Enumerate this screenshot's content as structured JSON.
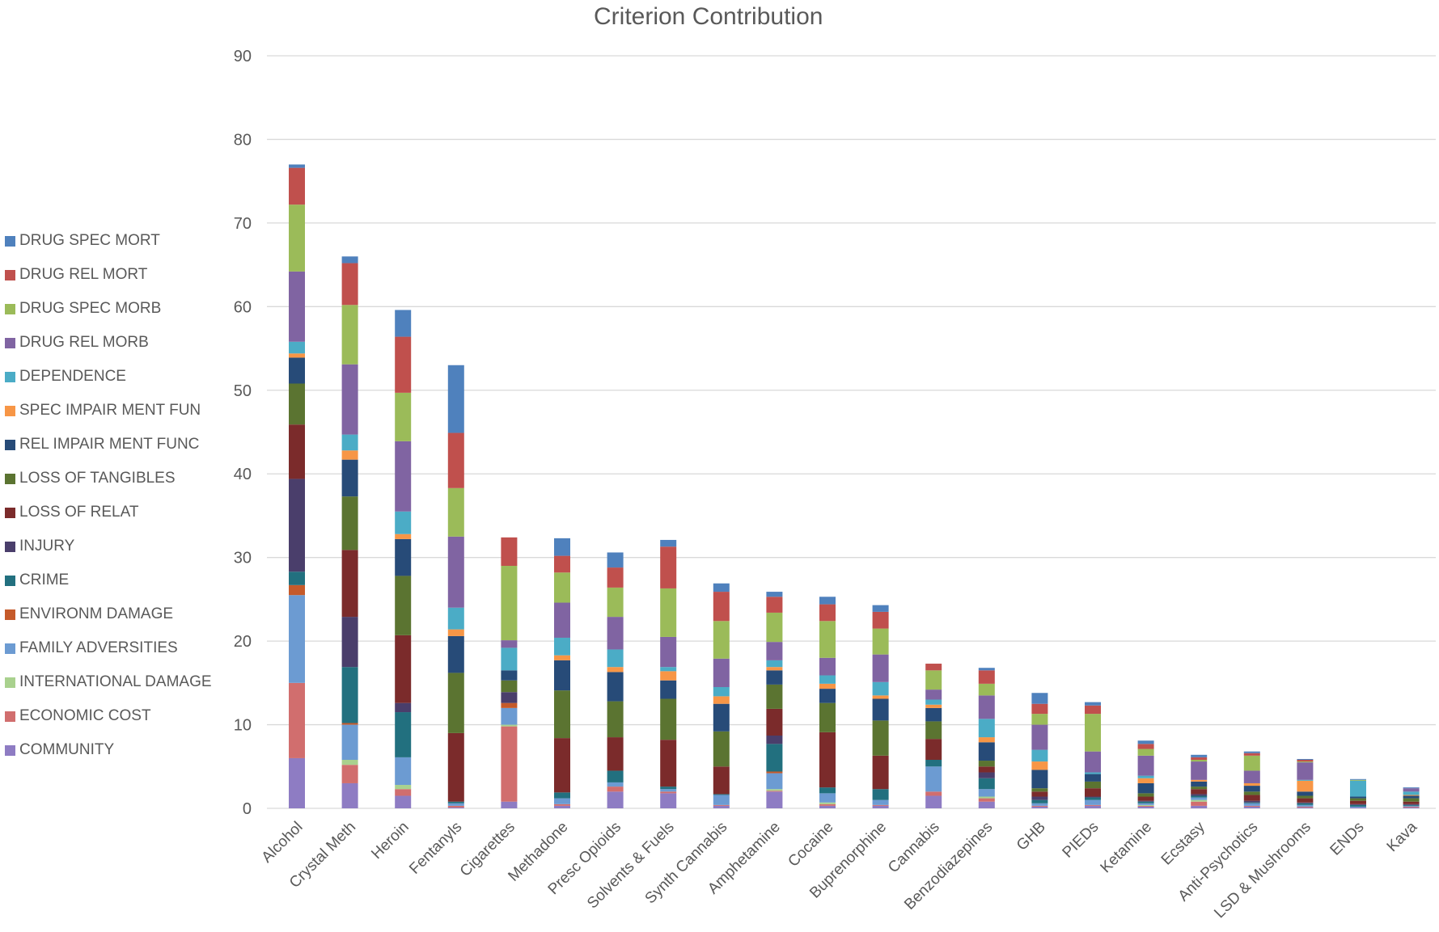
{
  "chart_data": {
    "type": "bar",
    "stacked": true,
    "title": "Criterion Contribution",
    "xlabel": "",
    "ylabel": "",
    "ylim": [
      0,
      90
    ],
    "yticks": [
      0,
      10,
      20,
      30,
      40,
      50,
      60,
      70,
      80,
      90
    ],
    "grid": true,
    "legend_position": "left",
    "categories": [
      "Alcohol",
      "Crystal Meth",
      "Heroin",
      "Fentanyls",
      "Cigarettes",
      "Methadone",
      "Presc Opioids",
      "Solvents & Fuels",
      "Synth Cannabis",
      "Amphetamine",
      "Cocaine",
      "Buprenorphine",
      "Cannabis",
      "Benzodiazepines",
      "GHB",
      "PIEDs",
      "Ketamine",
      "Ecstasy",
      "Anti-Psychotics",
      "LSD & Mushrooms",
      "ENDs",
      "Kava"
    ],
    "series": [
      {
        "name": "COMMUNITY",
        "color": "#8e7cc3",
        "values": [
          6.0,
          3.0,
          1.5,
          0.1,
          0.8,
          0.3,
          2.0,
          1.8,
          0.3,
          2.0,
          0.3,
          0.3,
          1.5,
          0.8,
          0.2,
          0.3,
          0.2,
          0.3,
          0.2,
          0.1,
          0.1,
          0.1
        ]
      },
      {
        "name": "ECONOMIC COST",
        "color": "#d16e6e",
        "values": [
          9.0,
          2.2,
          0.8,
          0.2,
          9.0,
          0.2,
          0.6,
          0.2,
          0.1,
          0.1,
          0.2,
          0.1,
          0.5,
          0.4,
          0.1,
          0.1,
          0.1,
          0.5,
          0.1,
          0.1,
          0.0,
          0.1
        ]
      },
      {
        "name": "INTERNATIONAL DAMAGE",
        "color": "#a9d18e",
        "values": [
          0.0,
          0.6,
          0.5,
          0.0,
          0.2,
          0.0,
          0.0,
          0.0,
          0.0,
          0.2,
          0.2,
          0.0,
          0.0,
          0.2,
          0.0,
          0.0,
          0.1,
          0.2,
          0.0,
          0.0,
          0.0,
          0.0
        ]
      },
      {
        "name": "FAMILY ADVERSITIES",
        "color": "#6c9bd2",
        "values": [
          10.5,
          4.2,
          3.3,
          0.3,
          2.0,
          0.7,
          0.5,
          0.3,
          1.2,
          1.9,
          1.1,
          0.6,
          3.0,
          0.9,
          0.3,
          0.6,
          0.2,
          0.3,
          0.3,
          0.2,
          0.1,
          0.1
        ]
      },
      {
        "name": "ENVIRONM DAMAGE",
        "color": "#c55a2a",
        "values": [
          1.2,
          0.2,
          0.0,
          0.0,
          0.6,
          0.0,
          0.0,
          0.0,
          0.0,
          0.2,
          0.0,
          0.0,
          0.0,
          0.0,
          0.0,
          0.0,
          0.0,
          0.0,
          0.0,
          0.0,
          0.0,
          0.0
        ]
      },
      {
        "name": "CRIME",
        "color": "#22707f",
        "values": [
          1.6,
          6.7,
          5.4,
          0.2,
          0.0,
          0.7,
          1.4,
          0.3,
          0.1,
          3.3,
          0.7,
          1.3,
          0.8,
          1.3,
          0.4,
          0.3,
          0.2,
          0.2,
          0.1,
          0.2,
          0.2,
          0.1
        ]
      },
      {
        "name": "INJURY",
        "color": "#4a3e6b",
        "values": [
          11.1,
          6.0,
          1.1,
          0.0,
          1.3,
          0.0,
          0.0,
          0.0,
          0.0,
          1.0,
          0.0,
          0.0,
          0.0,
          0.7,
          0.4,
          0.1,
          0.1,
          0.2,
          0.2,
          0.1,
          0.1,
          0.1
        ]
      },
      {
        "name": "LOSS OF RELAT",
        "color": "#7b2b2b",
        "values": [
          6.5,
          8.0,
          8.1,
          8.2,
          0.0,
          6.5,
          4.0,
          5.6,
          3.3,
          3.2,
          6.6,
          4.0,
          2.5,
          0.7,
          0.6,
          1.0,
          0.5,
          0.6,
          0.7,
          0.5,
          0.4,
          0.3
        ]
      },
      {
        "name": "LOSS OF TANGIBLES",
        "color": "#5b7431",
        "values": [
          4.9,
          6.4,
          7.1,
          7.2,
          1.4,
          5.7,
          4.3,
          4.9,
          4.2,
          2.9,
          3.5,
          4.2,
          2.1,
          0.7,
          0.4,
          0.8,
          0.4,
          0.3,
          0.4,
          0.3,
          0.3,
          0.4
        ]
      },
      {
        "name": "REL IMPAIR MENT FUNC",
        "color": "#274b78",
        "values": [
          3.1,
          4.4,
          4.4,
          4.4,
          1.2,
          3.6,
          3.5,
          2.2,
          3.3,
          1.7,
          1.7,
          2.6,
          1.6,
          2.2,
          2.2,
          0.9,
          1.2,
          0.6,
          0.7,
          0.5,
          0.2,
          0.3
        ]
      },
      {
        "name": "SPEC IMPAIR MENT FUN",
        "color": "#f79646",
        "values": [
          0.5,
          1.1,
          0.6,
          0.8,
          0.0,
          0.6,
          0.6,
          1.1,
          0.9,
          0.4,
          0.6,
          0.4,
          0.4,
          0.6,
          1.0,
          0.0,
          0.6,
          0.2,
          0.3,
          1.3,
          0.0,
          0.1
        ]
      },
      {
        "name": "DEPENDENCE",
        "color": "#4bacc6",
        "values": [
          1.4,
          1.9,
          2.7,
          2.6,
          2.7,
          2.1,
          2.1,
          0.5,
          1.1,
          0.8,
          1.0,
          1.6,
          0.6,
          2.2,
          1.4,
          0.2,
          0.3,
          0.0,
          0.0,
          0.1,
          1.9,
          0.4
        ]
      },
      {
        "name": "DRUG REL MORB",
        "color": "#8064a2",
        "values": [
          8.4,
          8.4,
          8.4,
          8.5,
          0.9,
          4.2,
          3.9,
          3.6,
          3.4,
          2.2,
          2.1,
          3.3,
          1.2,
          2.8,
          3.0,
          2.5,
          2.4,
          2.2,
          1.5,
          2.1,
          0.0,
          0.4
        ]
      },
      {
        "name": "DRUG SPEC MORB",
        "color": "#9bbb59",
        "values": [
          8.0,
          7.1,
          5.8,
          5.8,
          8.9,
          3.6,
          3.5,
          5.8,
          4.5,
          3.5,
          4.4,
          3.1,
          2.3,
          1.4,
          1.3,
          4.5,
          0.8,
          0.2,
          1.8,
          0.1,
          0.1,
          0.0
        ]
      },
      {
        "name": "DRUG REL MORT",
        "color": "#c0504d",
        "values": [
          4.4,
          5.0,
          6.7,
          6.6,
          3.4,
          2.0,
          2.4,
          5.0,
          3.5,
          1.9,
          2.0,
          2.0,
          0.8,
          1.6,
          1.2,
          1.0,
          0.6,
          0.3,
          0.3,
          0.2,
          0.0,
          0.0
        ]
      },
      {
        "name": "DRUG SPEC MORT",
        "color": "#4f81bd",
        "values": [
          0.4,
          0.8,
          3.2,
          8.1,
          0.0,
          2.1,
          1.8,
          0.8,
          1.0,
          0.6,
          0.9,
          0.8,
          0.0,
          0.3,
          1.3,
          0.4,
          0.4,
          0.3,
          0.2,
          0.1,
          0.1,
          0.1
        ]
      }
    ]
  }
}
